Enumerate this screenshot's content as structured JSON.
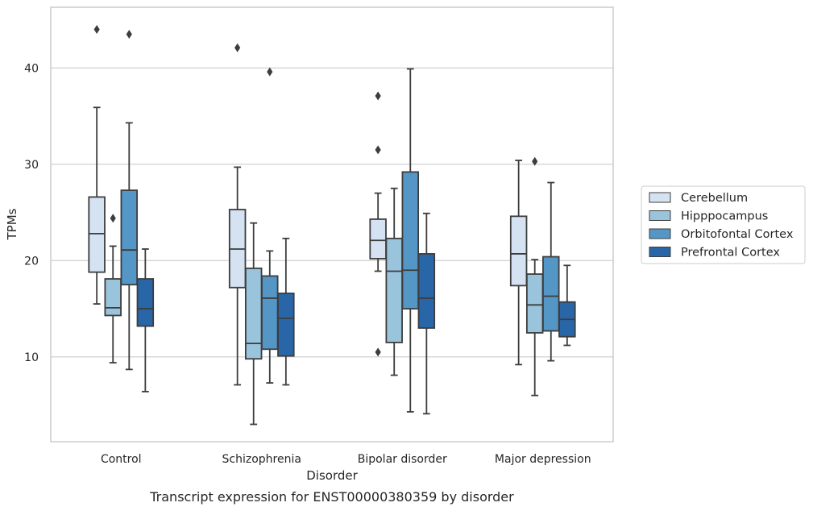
{
  "chart_data": {
    "type": "box",
    "title": "",
    "caption": "Transcript expression for ENST00000380359 by disorder",
    "xlabel": "Disorder",
    "ylabel": "TPMs",
    "ylim": [
      1.2,
      46.3
    ],
    "yticks": [
      10,
      20,
      30,
      40
    ],
    "grid": true,
    "legend_position": "right",
    "categories": [
      "Control",
      "Schizophrenia",
      "Bipolar disorder",
      "Major depression"
    ],
    "series": [
      {
        "name": "Cerebellum",
        "color": "#d4e2f1",
        "boxes": [
          {
            "whisker_low": 15.5,
            "q1": 18.8,
            "median": 22.8,
            "q3": 26.6,
            "whisker_high": 35.9,
            "outliers": [
              44.0
            ]
          },
          {
            "whisker_low": 7.1,
            "q1": 17.2,
            "median": 21.2,
            "q3": 25.3,
            "whisker_high": 29.7,
            "outliers": [
              42.1
            ]
          },
          {
            "whisker_low": 18.9,
            "q1": 20.2,
            "median": 22.1,
            "q3": 24.3,
            "whisker_high": 27.0,
            "outliers": [
              37.1,
              31.5,
              10.5
            ]
          },
          {
            "whisker_low": 9.2,
            "q1": 17.4,
            "median": 20.7,
            "q3": 24.6,
            "whisker_high": 30.4,
            "outliers": []
          }
        ]
      },
      {
        "name": "Hipppocampus",
        "color": "#9ac3dc",
        "boxes": [
          {
            "whisker_low": 9.4,
            "q1": 14.3,
            "median": 15.1,
            "q3": 18.1,
            "whisker_high": 21.5,
            "outliers": [
              24.4
            ]
          },
          {
            "whisker_low": 3.0,
            "q1": 9.8,
            "median": 11.4,
            "q3": 19.2,
            "whisker_high": 23.9,
            "outliers": []
          },
          {
            "whisker_low": 8.1,
            "q1": 11.5,
            "median": 18.9,
            "q3": 22.3,
            "whisker_high": 27.5,
            "outliers": []
          },
          {
            "whisker_low": 6.0,
            "q1": 12.5,
            "median": 15.4,
            "q3": 18.6,
            "whisker_high": 20.1,
            "outliers": [
              30.3
            ]
          }
        ]
      },
      {
        "name": "Orbitofontal Cortex",
        "color": "#5496c6",
        "boxes": [
          {
            "whisker_low": 8.7,
            "q1": 17.5,
            "median": 21.1,
            "q3": 27.3,
            "whisker_high": 34.3,
            "outliers": [
              43.5
            ]
          },
          {
            "whisker_low": 7.3,
            "q1": 10.8,
            "median": 16.1,
            "q3": 18.4,
            "whisker_high": 21.0,
            "outliers": [
              39.6
            ]
          },
          {
            "whisker_low": 4.3,
            "q1": 15.0,
            "median": 19.0,
            "q3": 29.2,
            "whisker_high": 39.9,
            "outliers": []
          },
          {
            "whisker_low": 9.6,
            "q1": 12.7,
            "median": 16.3,
            "q3": 20.4,
            "whisker_high": 28.1,
            "outliers": []
          }
        ]
      },
      {
        "name": "Prefrontal Cortex",
        "color": "#2966a8",
        "boxes": [
          {
            "whisker_low": 6.4,
            "q1": 13.2,
            "median": 15.0,
            "q3": 18.1,
            "whisker_high": 21.2,
            "outliers": []
          },
          {
            "whisker_low": 7.1,
            "q1": 10.1,
            "median": 14.0,
            "q3": 16.6,
            "whisker_high": 22.3,
            "outliers": []
          },
          {
            "whisker_low": 4.1,
            "q1": 13.0,
            "median": 16.1,
            "q3": 20.7,
            "whisker_high": 24.9,
            "outliers": []
          },
          {
            "whisker_low": 11.2,
            "q1": 12.1,
            "median": 13.9,
            "q3": 15.7,
            "whisker_high": 19.5,
            "outliers": []
          }
        ]
      }
    ]
  }
}
